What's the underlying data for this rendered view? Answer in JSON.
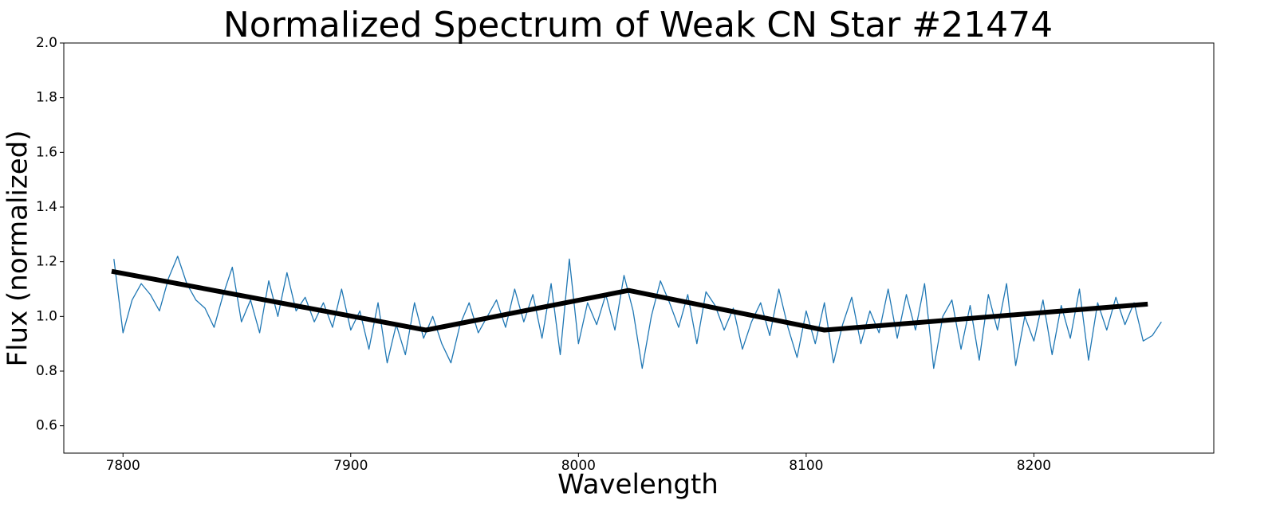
{
  "chart_data": {
    "type": "line",
    "title": "Normalized Spectrum of Weak CN Star #21474",
    "x_label": "Wavelength",
    "y_label": "Flux (normalized)",
    "xlim": [
      7774,
      8279
    ],
    "ylim": [
      0.5,
      2.0
    ],
    "xticks": [
      7800,
      7900,
      8000,
      8100,
      8200
    ],
    "yticks": [
      0.6,
      0.8,
      {
        "value": 1.0,
        "label": "1.0"
      },
      1.2,
      1.4,
      1.6,
      1.8,
      {
        "value": 2.0,
        "label": "2.0"
      }
    ],
    "grid": false,
    "series": [
      {
        "color": "#1f77b4",
        "width": 1.3,
        "x": [
          7796,
          7800,
          7804,
          7808,
          7812,
          7816,
          7820,
          7824,
          7828,
          7832,
          7836,
          7840,
          7844,
          7848,
          7852,
          7856,
          7860,
          7864,
          7868,
          7872,
          7876,
          7880,
          7884,
          7888,
          7892,
          7896,
          7900,
          7904,
          7908,
          7912,
          7916,
          7920,
          7924,
          7928,
          7932,
          7936,
          7940,
          7944,
          7948,
          7952,
          7956,
          7960,
          7964,
          7968,
          7972,
          7976,
          7980,
          7984,
          7988,
          7992,
          7996,
          8000,
          8004,
          8008,
          8012,
          8016,
          8020,
          8024,
          8028,
          8032,
          8036,
          8040,
          8044,
          8048,
          8052,
          8056,
          8060,
          8064,
          8068,
          8072,
          8076,
          8080,
          8084,
          8088,
          8092,
          8096,
          8100,
          8104,
          8108,
          8112,
          8116,
          8120,
          8124,
          8128,
          8132,
          8136,
          8140,
          8144,
          8148,
          8152,
          8156,
          8160,
          8164,
          8168,
          8172,
          8176,
          8180,
          8184,
          8188,
          8192,
          8196,
          8200,
          8204,
          8208,
          8212,
          8216,
          8220,
          8224,
          8228,
          8232,
          8236,
          8240,
          8244,
          8248,
          8252,
          8256
        ],
        "values": [
          1.21,
          0.94,
          1.06,
          1.12,
          1.08,
          1.02,
          1.14,
          1.22,
          1.12,
          1.06,
          1.03,
          0.96,
          1.08,
          1.18,
          0.98,
          1.06,
          0.94,
          1.13,
          1.0,
          1.16,
          1.02,
          1.07,
          0.98,
          1.05,
          0.96,
          1.1,
          0.95,
          1.02,
          0.88,
          1.05,
          0.83,
          0.97,
          0.86,
          1.05,
          0.92,
          1.0,
          0.9,
          0.83,
          0.97,
          1.05,
          0.94,
          1.0,
          1.06,
          0.96,
          1.1,
          0.98,
          1.08,
          0.92,
          1.12,
          0.86,
          1.21,
          0.9,
          1.05,
          0.97,
          1.08,
          0.95,
          1.15,
          1.02,
          0.81,
          1.0,
          1.13,
          1.05,
          0.96,
          1.08,
          0.9,
          1.09,
          1.04,
          0.95,
          1.03,
          0.88,
          0.98,
          1.05,
          0.93,
          1.1,
          0.96,
          0.85,
          1.02,
          0.9,
          1.05,
          0.83,
          0.97,
          1.07,
          0.9,
          1.02,
          0.94,
          1.1,
          0.92,
          1.08,
          0.95,
          1.12,
          0.81,
          1.0,
          1.06,
          0.88,
          1.04,
          0.84,
          1.08,
          0.95,
          1.12,
          0.82,
          1.0,
          0.91,
          1.06,
          0.86,
          1.04,
          0.92,
          1.1,
          0.84,
          1.05,
          0.95,
          1.07,
          0.97,
          1.05,
          0.91,
          0.93,
          0.98
        ]
      },
      {
        "color": "#000000",
        "width": 6,
        "x": [
          7795,
          7933,
          8022,
          8108,
          8250
        ],
        "values": [
          1.165,
          0.95,
          1.095,
          0.95,
          1.045
        ]
      }
    ]
  }
}
